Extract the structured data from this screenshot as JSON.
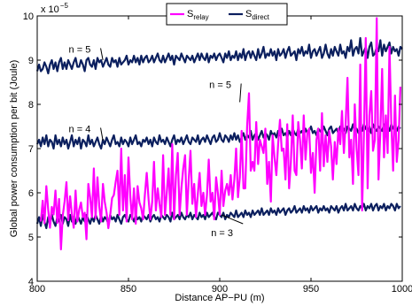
{
  "chart_data": {
    "type": "line",
    "title": "",
    "xlabel": "Distance AP−PU (m)",
    "ylabel": "Global power consumption per bit (Joule)",
    "y_exponent_label": "x 10",
    "y_exponent_power": "−5",
    "xlim": [
      800,
      1000
    ],
    "ylim": [
      4,
      10
    ],
    "xticks": [
      800,
      850,
      900,
      950,
      1000
    ],
    "xtick_labels": [
      "800",
      "850",
      "900",
      "950",
      "1000"
    ],
    "yticks": [
      4,
      5,
      6,
      7,
      8,
      9,
      10
    ],
    "ytick_labels": [
      "4",
      "5",
      "6",
      "7",
      "8",
      "9",
      "10"
    ],
    "grid": false,
    "legend": {
      "position": "top-center",
      "entries": [
        {
          "base": "S",
          "sub": "relay",
          "color": "#ff00ff"
        },
        {
          "base": "S",
          "sub": "direct",
          "color": "#0b1f5e"
        }
      ]
    },
    "annotations": [
      {
        "text": "n = 5",
        "at": [
          826,
          9.25
        ],
        "x": 836,
        "y": 9.0
      },
      {
        "text": "n = 4",
        "at": [
          826,
          7.45
        ],
        "x": 836,
        "y": 7.18
      },
      {
        "text": "n = 5",
        "at": [
          903,
          8.45
        ],
        "x": 911,
        "y": 8.05
      },
      {
        "text": "n = 3",
        "at": [
          904,
          5.1
        ],
        "x": 901,
        "y": 5.5
      }
    ],
    "series": [
      {
        "key": "relay",
        "color": "#ff00ff",
        "x_start": 802,
        "x_step": 1,
        "values": [
          5.35,
          5.82,
          5.31,
          6.15,
          5.62,
          5.21,
          5.68,
          5.51,
          6.05,
          5.32,
          5.86,
          4.72,
          5.48,
          5.8,
          6.24,
          5.38,
          5.92,
          5.52,
          5.21,
          6.05,
          5.35,
          5.62,
          5.78,
          5.45,
          5.55,
          4.95,
          6.2,
          5.9,
          5.45,
          6.55,
          5.42,
          6.35,
          5.7,
          5.35,
          6.2,
          5.8,
          5.55,
          5.2,
          5.5,
          5.88,
          5.95,
          6.25,
          6.5,
          5.5,
          7.0,
          5.6,
          6.4,
          5.35,
          6.8,
          5.9,
          5.4,
          6.1,
          5.3,
          6.15,
          5.78,
          5.65,
          5.4,
          5.95,
          6.45,
          5.85,
          5.4,
          5.8,
          6.7,
          5.6,
          6.1,
          5.75,
          5.45,
          6.85,
          5.5,
          6.02,
          6.55,
          5.5,
          7.1,
          5.4,
          6.4,
          6.9,
          5.5,
          6.1,
          6.55,
          6.85,
          5.5,
          6.3,
          6.95,
          5.75,
          6.2,
          5.45,
          5.98,
          6.45,
          5.7,
          6.0,
          5.5,
          5.95,
          6.75,
          5.8,
          6.0,
          5.4,
          6.35,
          6.0,
          5.5,
          6.5,
          5.7,
          6.05,
          6.2,
          5.95,
          6.4,
          5.85,
          6.3,
          7.0,
          5.9,
          6.35,
          7.4,
          6.1,
          6.1,
          7.5,
          8.25,
          6.5,
          6.7,
          6.5,
          7.6,
          6.65,
          7.2,
          7.05,
          6.9,
          7.45,
          6.2,
          6.7,
          5.8,
          7.3,
          6.8,
          6.4,
          7.1,
          7.65,
          6.95,
          7.0,
          6.3,
          7.55,
          6.1,
          6.7,
          7.75,
          6.5,
          6.4,
          7.6,
          7.2,
          6.55,
          7.75,
          6.75,
          7.35,
          7.45,
          6.45,
          6.9,
          6.0,
          7.2,
          7.45,
          6.5,
          7.8,
          6.6,
          7.3,
          6.7,
          7.4,
          7.05,
          6.3,
          7.15,
          6.65,
          7.45,
          7.1,
          7.85,
          6.9,
          7.55,
          8.6,
          6.8,
          7.2,
          6.2,
          8.0,
          7.0,
          6.4,
          8.9,
          5.6,
          7.3,
          9.5,
          6.1,
          7.75,
          8.3,
          6.95,
          7.2,
          9.95,
          6.3,
          7.4,
          8.8,
          6.8,
          7.75,
          6.9,
          9.3,
          7.6,
          6.5,
          8.2,
          6.7,
          7.2,
          8.4
        ]
      },
      {
        "key": "direct_n5",
        "color": "#0b1f5e",
        "x_start": 800,
        "x_step": 1,
        "values": [
          8.75,
          8.9,
          8.75,
          8.8,
          8.95,
          8.85,
          8.7,
          8.9,
          9.0,
          8.8,
          8.95,
          8.75,
          8.95,
          9.05,
          8.8,
          8.95,
          8.8,
          9.0,
          8.9,
          8.8,
          8.95,
          9.05,
          8.85,
          8.85,
          9.0,
          8.9,
          8.75,
          9.0,
          9.05,
          8.9,
          8.85,
          9.0,
          8.8,
          9.05,
          8.95,
          9.0,
          8.85,
          8.95,
          9.05,
          8.9,
          8.85,
          9.05,
          8.95,
          9.0,
          8.85,
          9.05,
          8.9,
          8.95,
          9.0,
          9.1,
          8.9,
          9.0,
          8.95,
          9.1,
          8.95,
          9.05,
          8.9,
          9.1,
          8.95,
          9.05,
          9.1,
          8.95,
          9.0,
          9.1,
          8.95,
          9.05,
          9.15,
          9.0,
          8.95,
          9.1,
          8.95,
          9.05,
          9.15,
          9.0,
          9.1,
          8.9,
          9.1,
          9.05,
          9.0,
          9.15,
          9.05,
          8.95,
          9.1,
          9.05,
          9.0,
          9.1,
          8.95,
          9.05,
          9.15,
          9.0,
          9.15,
          9.05,
          9.0,
          9.15,
          8.95,
          9.1,
          9.05,
          9.15,
          9.0,
          9.1,
          9.15,
          9.05,
          8.95,
          9.15,
          9.05,
          9.2,
          9.0,
          9.1,
          9.05,
          9.2,
          9.0,
          9.15,
          9.05,
          9.25,
          9.0,
          9.15,
          9.2,
          9.05,
          9.2,
          9.1,
          9.0,
          9.25,
          9.05,
          9.15,
          9.3,
          9.05,
          9.15,
          9.1,
          9.25,
          9.1,
          9.2,
          9.0,
          9.25,
          9.1,
          9.15,
          9.25,
          9.05,
          9.2,
          9.3,
          9.1,
          9.15,
          9.2,
          9.0,
          9.25,
          9.15,
          9.3,
          9.1,
          9.2,
          9.15,
          9.35,
          9.05,
          9.2,
          9.25,
          9.1,
          9.2,
          9.3,
          9.05,
          9.15,
          9.35,
          9.15,
          9.05,
          9.25,
          9.1,
          9.3,
          9.2,
          9.1,
          9.35,
          9.15,
          9.2,
          9.05,
          9.3,
          9.2,
          9.45,
          9.1,
          9.25,
          9.3,
          9.15,
          9.5,
          9.1,
          9.2,
          9.3,
          9.05,
          9.3,
          9.4,
          9.1,
          9.15,
          9.3,
          9.2,
          9.45,
          9.1,
          9.35,
          9.2,
          9.3,
          9.4,
          9.15,
          9.3,
          9.2,
          9.25,
          9.1,
          9.3,
          9.25
        ]
      },
      {
        "key": "direct_n4",
        "color": "#0b1f5e",
        "x_start": 800,
        "x_step": 1,
        "values": [
          7.1,
          7.2,
          7.05,
          7.25,
          7.1,
          7.3,
          7.05,
          7.2,
          7.15,
          7.0,
          7.3,
          7.1,
          7.2,
          7.05,
          7.25,
          7.1,
          7.2,
          7.0,
          7.15,
          7.3,
          7.05,
          7.2,
          7.1,
          7.25,
          7.0,
          7.2,
          7.15,
          7.05,
          7.3,
          7.1,
          7.2,
          7.05,
          7.15,
          7.25,
          7.1,
          7.0,
          7.2,
          7.1,
          7.25,
          7.15,
          7.05,
          7.2,
          7.3,
          7.1,
          7.15,
          7.05,
          7.25,
          7.1,
          7.2,
          7.15,
          7.05,
          7.25,
          7.1,
          7.2,
          7.3,
          7.1,
          7.15,
          7.05,
          7.2,
          7.15,
          7.25,
          7.1,
          7.2,
          7.05,
          7.25,
          7.15,
          7.1,
          7.3,
          7.15,
          7.2,
          7.1,
          7.25,
          7.15,
          7.05,
          7.2,
          7.3,
          7.1,
          7.2,
          7.15,
          7.25,
          7.1,
          7.2,
          7.3,
          7.15,
          7.1,
          7.25,
          7.2,
          7.15,
          7.3,
          7.1,
          7.2,
          7.25,
          7.15,
          7.3,
          7.2,
          7.1,
          7.25,
          7.3,
          7.15,
          7.2,
          7.35,
          7.2,
          7.15,
          7.3,
          7.25,
          7.15,
          7.3,
          7.2,
          7.35,
          7.2,
          7.3,
          7.15,
          7.25,
          7.35,
          7.2,
          7.3,
          7.25,
          7.4,
          7.2,
          7.3,
          7.35,
          7.2,
          7.3,
          7.4,
          7.25,
          7.35,
          7.3,
          7.2,
          7.4,
          7.3,
          7.35,
          7.25,
          7.4,
          7.3,
          7.45,
          7.3,
          7.35,
          7.25,
          7.4,
          7.3,
          7.45,
          7.35,
          7.3,
          7.45,
          7.35,
          7.4,
          7.3,
          7.45,
          7.35,
          7.4,
          7.5,
          7.35,
          7.4,
          7.3,
          7.45,
          7.4,
          7.35,
          7.5,
          7.4,
          7.3,
          7.45,
          7.5,
          7.35,
          7.4,
          7.45,
          7.35,
          7.5,
          7.4,
          7.45,
          7.35,
          7.5,
          7.45,
          7.4,
          7.55,
          7.4,
          7.45,
          7.35,
          7.5,
          7.4,
          7.55,
          7.45,
          7.4,
          7.5,
          7.35,
          7.55,
          7.45,
          7.4,
          7.5,
          7.45,
          7.4,
          7.55,
          7.45,
          7.5,
          7.4,
          7.55,
          7.45,
          7.5,
          7.4,
          7.5,
          7.45
        ]
      },
      {
        "key": "direct_n3",
        "color": "#0b1f5e",
        "x_start": 800,
        "x_step": 1,
        "values": [
          5.3,
          5.45,
          5.25,
          5.5,
          5.35,
          5.2,
          5.45,
          5.3,
          5.5,
          5.35,
          5.25,
          5.45,
          5.35,
          5.5,
          5.3,
          5.45,
          5.4,
          5.25,
          5.5,
          5.35,
          5.45,
          5.3,
          5.5,
          5.4,
          5.3,
          5.45,
          5.35,
          5.5,
          5.4,
          5.3,
          5.45,
          5.35,
          5.5,
          5.4,
          5.3,
          5.5,
          5.35,
          5.45,
          5.4,
          5.3,
          5.5,
          5.4,
          5.45,
          5.35,
          5.5,
          5.4,
          5.3,
          5.45,
          5.5,
          5.4,
          5.35,
          5.5,
          5.45,
          5.35,
          5.5,
          5.4,
          5.45,
          5.35,
          5.5,
          5.45,
          5.4,
          5.5,
          5.35,
          5.45,
          5.5,
          5.4,
          5.45,
          5.35,
          5.5,
          5.45,
          5.4,
          5.5,
          5.45,
          5.35,
          5.55,
          5.4,
          5.45,
          5.5,
          5.4,
          5.55,
          5.45,
          5.4,
          5.5,
          5.45,
          5.55,
          5.4,
          5.5,
          5.45,
          5.4,
          5.55,
          5.45,
          5.5,
          5.4,
          5.55,
          5.45,
          5.5,
          5.55,
          5.45,
          5.4,
          5.55,
          5.5,
          5.45,
          5.55,
          5.4,
          5.5,
          5.45,
          5.55,
          5.5,
          5.45,
          5.6,
          5.45,
          5.5,
          5.55,
          5.45,
          5.6,
          5.5,
          5.55,
          5.45,
          5.6,
          5.5,
          5.55,
          5.6,
          5.5,
          5.65,
          5.5,
          5.55,
          5.6,
          5.5,
          5.65,
          5.55,
          5.6,
          5.5,
          5.65,
          5.55,
          5.6,
          5.65,
          5.5,
          5.6,
          5.65,
          5.55,
          5.6,
          5.7,
          5.55,
          5.6,
          5.65,
          5.55,
          5.7,
          5.6,
          5.65,
          5.55,
          5.7,
          5.6,
          5.65,
          5.7,
          5.55,
          5.65,
          5.6,
          5.7,
          5.6,
          5.65,
          5.55,
          5.7,
          5.65,
          5.6,
          5.7,
          5.55,
          5.65,
          5.7,
          5.6,
          5.75,
          5.6,
          5.65,
          5.7,
          5.6,
          5.75,
          5.65,
          5.6,
          5.7,
          5.65,
          5.75,
          5.6,
          5.7,
          5.65,
          5.75,
          5.6,
          5.7,
          5.75,
          5.6,
          5.7,
          5.65,
          5.75,
          5.6,
          5.7,
          5.65,
          5.75,
          5.7,
          5.6,
          5.75,
          5.65,
          5.7
        ]
      }
    ]
  }
}
